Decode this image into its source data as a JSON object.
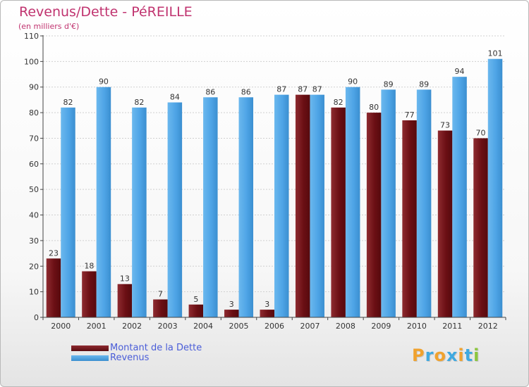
{
  "title": "Revenus/Dette - PéREILLE",
  "subtitle": "(en milliers d'€)",
  "logo": {
    "text": "Proxiti",
    "letters": [
      {
        "ch": "P",
        "color": "#f0a22e"
      },
      {
        "ch": "r",
        "color": "#3fa9e0"
      },
      {
        "ch": "o",
        "color": "#f0a22e"
      },
      {
        "ch": "x",
        "color": "#3fa9e0"
      },
      {
        "ch": "i",
        "color": "#f0a22e"
      },
      {
        "ch": "t",
        "color": "#3fa9e0"
      },
      {
        "ch": "i",
        "color": "#8cc63f"
      }
    ]
  },
  "legend": [
    {
      "label": "Montant de la Dette",
      "color": "#6b0f14"
    },
    {
      "label": "Revenus",
      "color": "#4ea4e6"
    }
  ],
  "chart_data": {
    "type": "bar",
    "title": "Revenus/Dette - PéREILLE",
    "subtitle": "(en milliers d'€)",
    "categories": [
      "2000",
      "2001",
      "2002",
      "2003",
      "2004",
      "2005",
      "2006",
      "2007",
      "2008",
      "2009",
      "2010",
      "2011",
      "2012"
    ],
    "series": [
      {
        "name": "Montant de la Dette",
        "color": "#6b0f14",
        "values": [
          23,
          18,
          13,
          7,
          5,
          3,
          3,
          87,
          82,
          80,
          77,
          73,
          70
        ]
      },
      {
        "name": "Revenus",
        "color": "#4ea4e6",
        "values": [
          82,
          90,
          82,
          84,
          86,
          86,
          87,
          87,
          90,
          89,
          89,
          94,
          101
        ]
      }
    ],
    "ylim": [
      0,
      110
    ],
    "yticks": [
      0,
      10,
      20,
      30,
      40,
      50,
      60,
      70,
      80,
      90,
      100,
      110
    ],
    "grid": true,
    "legend_position": "bottom-left"
  }
}
